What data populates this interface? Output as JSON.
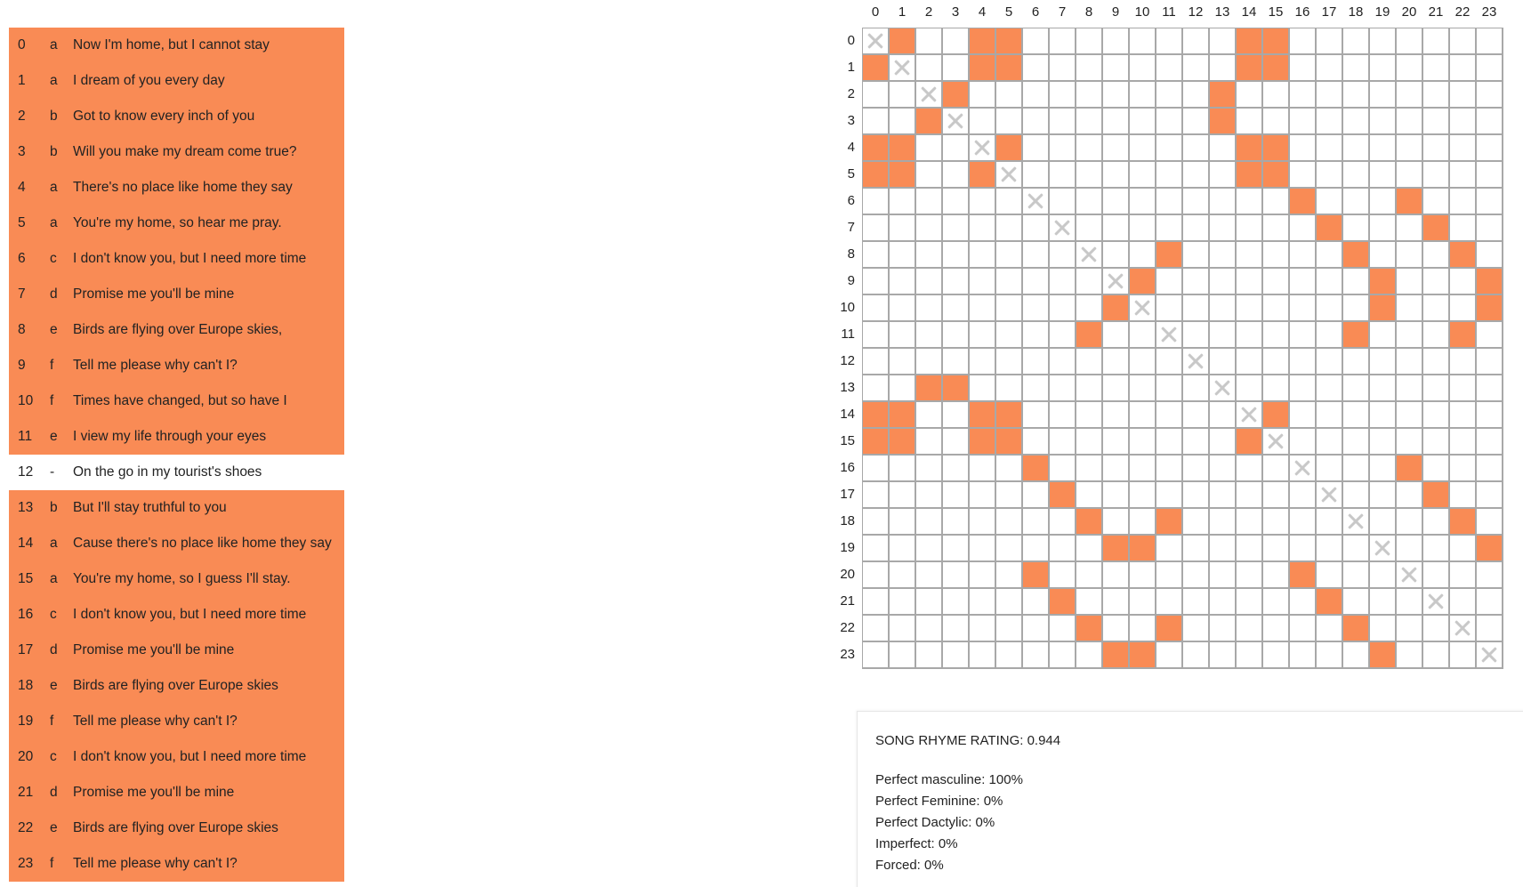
{
  "lyrics": [
    {
      "index": "0",
      "letter": "a",
      "text": "Now I'm home, but I cannot stay",
      "highlighted": true
    },
    {
      "index": "1",
      "letter": "a",
      "text": "I dream of you every day",
      "highlighted": true
    },
    {
      "index": "2",
      "letter": "b",
      "text": "Got to know every inch of you",
      "highlighted": true
    },
    {
      "index": "3",
      "letter": "b",
      "text": "Will you make my dream come true?",
      "highlighted": true
    },
    {
      "index": "4",
      "letter": "a",
      "text": "There's no place like home they say",
      "highlighted": true
    },
    {
      "index": "5",
      "letter": "a",
      "text": "You're my home, so hear me pray.",
      "highlighted": true
    },
    {
      "index": "6",
      "letter": "c",
      "text": "I don't know you, but I need more time",
      "highlighted": true
    },
    {
      "index": "7",
      "letter": "d",
      "text": "Promise me you'll be mine",
      "highlighted": true
    },
    {
      "index": "8",
      "letter": "e",
      "text": "Birds are flying over Europe skies,",
      "highlighted": true
    },
    {
      "index": "9",
      "letter": "f",
      "text": "Tell me please why can't I?",
      "highlighted": true
    },
    {
      "index": "10",
      "letter": "f",
      "text": "Times have changed, but so have I",
      "highlighted": true
    },
    {
      "index": "11",
      "letter": "e",
      "text": "I view my life through your eyes",
      "highlighted": true
    },
    {
      "index": "12",
      "letter": "-",
      "text": "On the go in my tourist's shoes",
      "highlighted": false
    },
    {
      "index": "13",
      "letter": "b",
      "text": "But I'll stay truthful to you",
      "highlighted": true
    },
    {
      "index": "14",
      "letter": "a",
      "text": "Cause there's no place like home they say",
      "highlighted": true
    },
    {
      "index": "15",
      "letter": "a",
      "text": "You're my home, so I guess I'll stay.",
      "highlighted": true
    },
    {
      "index": "16",
      "letter": "c",
      "text": "I don't know you, but I need more time",
      "highlighted": true
    },
    {
      "index": "17",
      "letter": "d",
      "text": "Promise me you'll be mine",
      "highlighted": true
    },
    {
      "index": "18",
      "letter": "e",
      "text": "Birds are flying over Europe skies",
      "highlighted": true
    },
    {
      "index": "19",
      "letter": "f",
      "text": "Tell me please why can't I?",
      "highlighted": true
    },
    {
      "index": "20",
      "letter": "c",
      "text": "I don't know you, but I need more time",
      "highlighted": true
    },
    {
      "index": "21",
      "letter": "d",
      "text": "Promise me you'll be mine",
      "highlighted": true
    },
    {
      "index": "22",
      "letter": "e",
      "text": "Birds are flying over Europe skies",
      "highlighted": true
    },
    {
      "index": "23",
      "letter": "f",
      "text": "Tell me please why can't I?",
      "highlighted": true
    }
  ],
  "matrix": {
    "labels": [
      "0",
      "1",
      "2",
      "3",
      "4",
      "5",
      "6",
      "7",
      "8",
      "9",
      "10",
      "11",
      "12",
      "13",
      "14",
      "15",
      "16",
      "17",
      "18",
      "19",
      "20",
      "21",
      "22",
      "23"
    ],
    "rhyme_pairs": {
      "0": [
        1,
        4,
        5,
        14,
        15
      ],
      "1": [
        0,
        4,
        5,
        14,
        15
      ],
      "2": [
        3,
        13
      ],
      "3": [
        2,
        13
      ],
      "4": [
        0,
        1,
        5,
        14,
        15
      ],
      "5": [
        0,
        1,
        4,
        14,
        15
      ],
      "6": [
        16,
        20
      ],
      "7": [
        17,
        21
      ],
      "8": [
        11,
        18,
        22
      ],
      "9": [
        10,
        19,
        23
      ],
      "10": [
        9,
        19,
        23
      ],
      "11": [
        8,
        18,
        22
      ],
      "12": [],
      "13": [
        2,
        3
      ],
      "14": [
        0,
        1,
        4,
        5,
        15
      ],
      "15": [
        0,
        1,
        4,
        5,
        14
      ],
      "16": [
        6,
        20
      ],
      "17": [
        7,
        21
      ],
      "18": [
        8,
        11,
        22
      ],
      "19": [
        9,
        10,
        23
      ],
      "20": [
        6,
        16
      ],
      "21": [
        7,
        17
      ],
      "22": [
        8,
        11,
        18
      ],
      "23": [
        9,
        10,
        19
      ]
    },
    "highlight_color": "#f98b55",
    "self_marker_icon": "x-mark-icon"
  },
  "stats": {
    "title": "SONG RHYME RATING: 0.944",
    "lines": [
      "Perfect masculine: 100%",
      "Perfect Feminine: 0%",
      "Perfect Dactylic: 0%",
      "Imperfect: 0%",
      "Forced: 0%"
    ]
  }
}
